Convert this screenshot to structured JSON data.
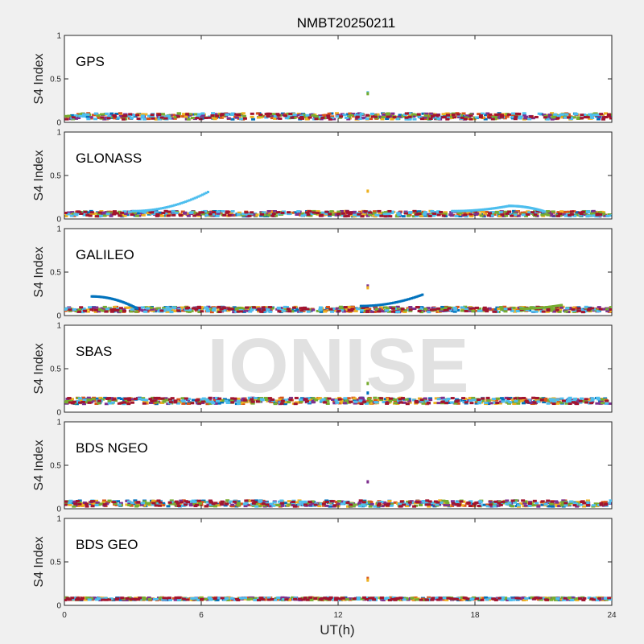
{
  "chart_data": {
    "type": "scatter",
    "title": "NMBT20250211",
    "xlabel": "UT(h)",
    "ylabel": "S4 Index",
    "xlim": [
      0,
      24
    ],
    "ylim": [
      0,
      1
    ],
    "x_ticks": [
      "0",
      "6",
      "12",
      "18",
      "24"
    ],
    "y_ticks": [
      "0",
      "0.5",
      "1"
    ],
    "watermark": "IONISE",
    "series_colors": [
      "#0072bd",
      "#d95319",
      "#edb120",
      "#7e2f8e",
      "#77ac30",
      "#4dbeee",
      "#a2142f"
    ],
    "panels": [
      {
        "label": "GPS",
        "baseline": 0.07,
        "spread": 0.035,
        "outliers": [
          {
            "x": 13.3,
            "y": 0.34,
            "color": "#4dbeee"
          },
          {
            "x": 13.3,
            "y": 0.33,
            "color": "#77ac30"
          }
        ],
        "arcs": []
      },
      {
        "label": "GLONASS",
        "baseline": 0.06,
        "spread": 0.03,
        "outliers": [
          {
            "x": 13.3,
            "y": 0.32,
            "color": "#edb120"
          }
        ],
        "arcs": [
          {
            "x0": 3.0,
            "x1": 6.3,
            "y0": 0.09,
            "y1": 0.31,
            "color": "#4dbeee"
          },
          {
            "x0": 17.0,
            "x1": 19.5,
            "y0": 0.09,
            "y1": 0.15,
            "color": "#4dbeee"
          },
          {
            "x0": 19.5,
            "x1": 21.0,
            "y0": 0.15,
            "y1": 0.09,
            "color": "#4dbeee"
          }
        ]
      },
      {
        "label": "GALILEO",
        "baseline": 0.07,
        "spread": 0.03,
        "outliers": [
          {
            "x": 13.3,
            "y": 0.34,
            "color": "#7e2f8e"
          },
          {
            "x": 13.3,
            "y": 0.32,
            "color": "#edb120"
          }
        ],
        "arcs": [
          {
            "x0": 1.2,
            "x1": 3.2,
            "y0": 0.22,
            "y1": 0.08,
            "color": "#0072bd"
          },
          {
            "x0": 13.0,
            "x1": 15.7,
            "y0": 0.11,
            "y1": 0.24,
            "color": "#0072bd"
          },
          {
            "x0": 20.0,
            "x1": 21.8,
            "y0": 0.08,
            "y1": 0.12,
            "color": "#77ac30"
          }
        ]
      },
      {
        "label": "SBAS",
        "baseline": 0.13,
        "spread": 0.035,
        "outliers": [
          {
            "x": 13.3,
            "y": 0.33,
            "color": "#77ac30"
          },
          {
            "x": 13.3,
            "y": 0.22,
            "color": "#0072bd"
          }
        ],
        "arcs": []
      },
      {
        "label": "BDS NGEO",
        "baseline": 0.06,
        "spread": 0.035,
        "outliers": [
          {
            "x": 13.3,
            "y": 0.31,
            "color": "#7e2f8e"
          }
        ],
        "arcs": []
      },
      {
        "label": "BDS GEO",
        "baseline": 0.075,
        "spread": 0.015,
        "outliers": [
          {
            "x": 13.3,
            "y": 0.31,
            "color": "#d95319"
          },
          {
            "x": 13.3,
            "y": 0.29,
            "color": "#edb120"
          }
        ],
        "arcs": []
      }
    ]
  }
}
